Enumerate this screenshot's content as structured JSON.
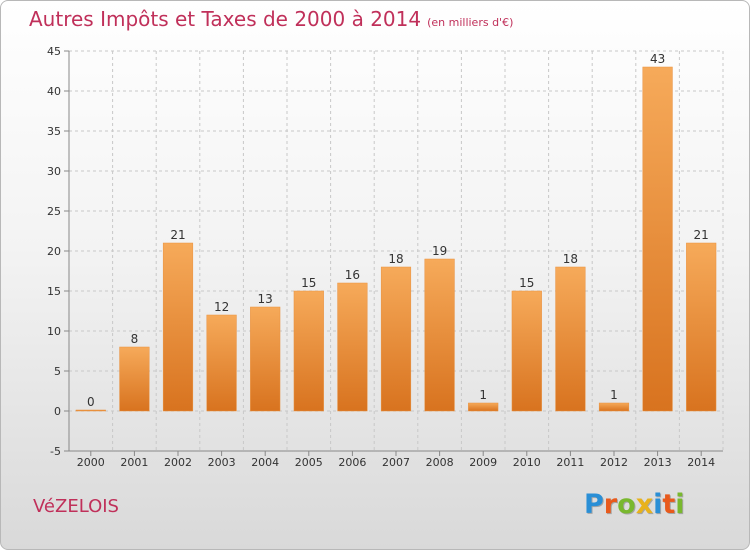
{
  "title": "Autres Impôts et Taxes de 2000 à 2014",
  "unit_note": "(en milliers d'€)",
  "commune": "VéZELOIS",
  "logo": {
    "letters": [
      {
        "char": "P",
        "color": "#2a8fd6"
      },
      {
        "char": "r",
        "color": "#e85a1c"
      },
      {
        "char": "o",
        "color": "#79b82e"
      },
      {
        "char": "x",
        "color": "#e8b21c"
      },
      {
        "char": "i",
        "color": "#2a8fd6"
      },
      {
        "char": "t",
        "color": "#e85a1c"
      },
      {
        "char": "i",
        "color": "#79b82e"
      }
    ]
  },
  "colors": {
    "title": "#c0305a",
    "bar_light": "#f6aa5a",
    "bar_dark": "#d8731f",
    "grid": "#c8c8c8",
    "axis_text": "#333333"
  },
  "chart_data": {
    "type": "bar",
    "categories": [
      "2000",
      "2001",
      "2002",
      "2003",
      "2004",
      "2005",
      "2006",
      "2007",
      "2008",
      "2009",
      "2010",
      "2011",
      "2012",
      "2013",
      "2014"
    ],
    "values": [
      0,
      8,
      21,
      12,
      13,
      15,
      16,
      18,
      19,
      1,
      15,
      18,
      1,
      43,
      21
    ],
    "ylim": [
      -5,
      45
    ],
    "yticks": [
      -5,
      0,
      5,
      10,
      15,
      20,
      25,
      30,
      35,
      40,
      45
    ],
    "grid": true,
    "xlabel": "",
    "ylabel": ""
  }
}
